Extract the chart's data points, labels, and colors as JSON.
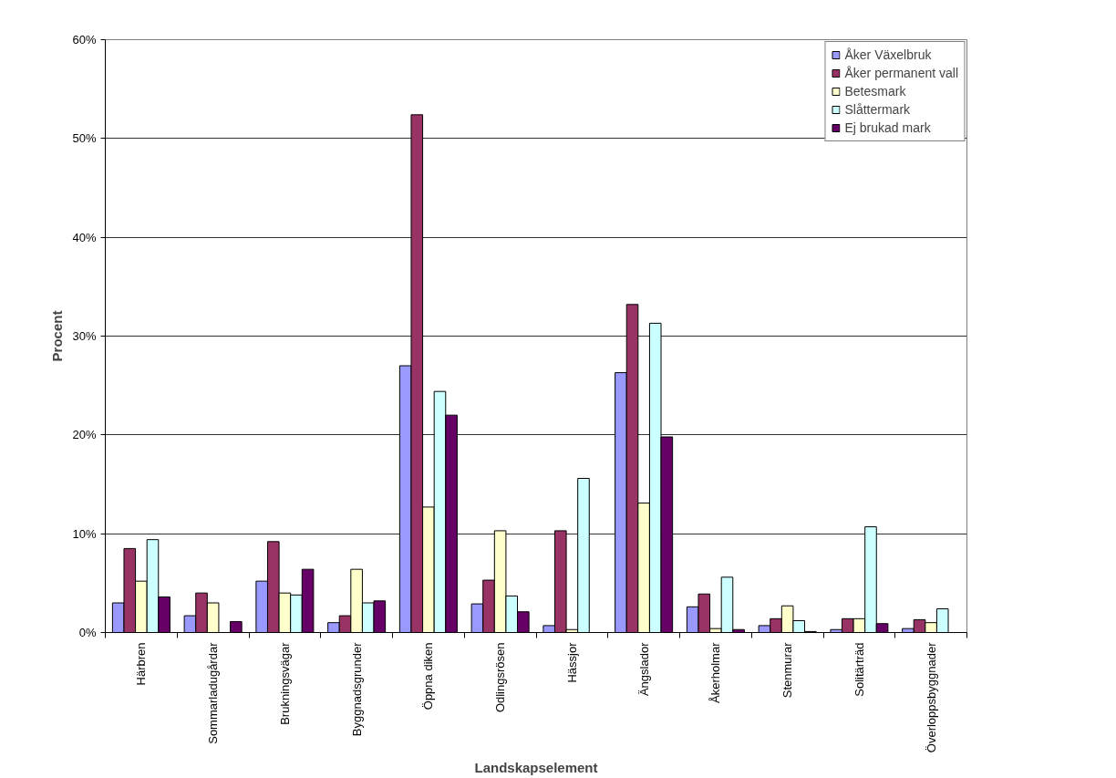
{
  "chart_data": {
    "type": "bar",
    "xlabel": "Landskapselement",
    "ylabel": "Procent",
    "categories": [
      "Härbren",
      "Sommarladugårdar",
      "Brukningsvägar",
      "Byggnadsgrunder",
      "Öppna diken",
      "Odlingsrösen",
      "Hässjor",
      "Ängslador",
      "Åkerholmar",
      "Stenmurar",
      "Solitärträd",
      "Överloppsbyggnader"
    ],
    "series": [
      {
        "name": "Åker Växelbruk",
        "color": "#9999ff",
        "values": [
          3.0,
          1.7,
          5.2,
          1.0,
          27.0,
          2.9,
          0.7,
          26.3,
          2.6,
          0.7,
          0.3,
          0.4
        ]
      },
      {
        "name": "Åker permanent vall",
        "color": "#993366",
        "values": [
          8.5,
          4.0,
          9.2,
          1.7,
          52.4,
          5.3,
          10.3,
          33.2,
          3.9,
          1.4,
          1.4,
          1.3
        ]
      },
      {
        "name": "Betesmark",
        "color": "#ffffcc",
        "values": [
          5.2,
          3.0,
          4.0,
          6.4,
          12.7,
          10.3,
          0.3,
          13.1,
          0.4,
          2.7,
          1.4,
          1.0
        ]
      },
      {
        "name": "Slåttermark",
        "color": "#ccffff",
        "values": [
          9.4,
          null,
          3.8,
          3.0,
          24.4,
          3.7,
          15.6,
          31.3,
          5.6,
          1.2,
          10.7,
          2.4
        ]
      },
      {
        "name": "Ej brukad mark",
        "color": "#660066",
        "values": [
          3.6,
          1.1,
          6.4,
          3.2,
          22.0,
          2.1,
          null,
          19.8,
          0.3,
          0.1,
          0.9,
          null
        ]
      }
    ],
    "ylim": [
      0,
      60
    ],
    "yticks": [
      {
        "value": 0,
        "label": "0%"
      },
      {
        "value": 10,
        "label": "10%"
      },
      {
        "value": 20,
        "label": "20%"
      },
      {
        "value": 30,
        "label": "30%"
      },
      {
        "value": 40,
        "label": "40%"
      },
      {
        "value": 50,
        "label": "50%"
      },
      {
        "value": 60,
        "label": "60%"
      }
    ],
    "grid": "y",
    "legend": "top right"
  }
}
